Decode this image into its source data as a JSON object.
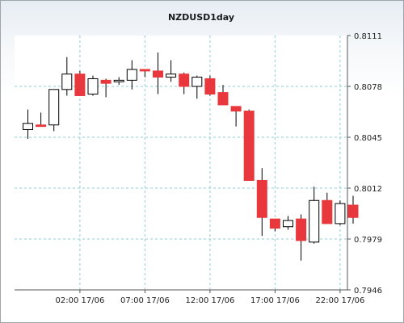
{
  "chart_data": {
    "type": "candlestick",
    "title": "NZDUSD1day",
    "xlabel": "",
    "ylabel": "",
    "ylim": [
      0.7946,
      0.8111
    ],
    "y_ticks": [
      "0.8111",
      "0.8078",
      "0.8045",
      "0.8012",
      "0.7979",
      "0.7946"
    ],
    "x_ticks": [
      {
        "index": 4,
        "label": "02:00 17/06"
      },
      {
        "index": 9,
        "label": "07:00 17/06"
      },
      {
        "index": 14,
        "label": "12:00 17/06"
      },
      {
        "index": 19,
        "label": "17:00 17/06"
      },
      {
        "index": 24,
        "label": "22:00 17/06"
      }
    ],
    "grid": true,
    "legend": "none",
    "colors": {
      "up": "#ffffff",
      "down": "#e8383d",
      "outline": "#000000",
      "grid": "#8ccfd6"
    },
    "candles": [
      {
        "open": 0.805,
        "high": 0.8063,
        "low": 0.8044,
        "close": 0.8054
      },
      {
        "open": 0.8053,
        "high": 0.8061,
        "low": 0.8052,
        "close": 0.8052
      },
      {
        "open": 0.8053,
        "high": 0.8076,
        "low": 0.8049,
        "close": 0.8076
      },
      {
        "open": 0.8076,
        "high": 0.8097,
        "low": 0.8072,
        "close": 0.8086
      },
      {
        "open": 0.8086,
        "high": 0.8088,
        "low": 0.8072,
        "close": 0.8072
      },
      {
        "open": 0.8073,
        "high": 0.8085,
        "low": 0.8072,
        "close": 0.8083
      },
      {
        "open": 0.8082,
        "high": 0.8083,
        "low": 0.8071,
        "close": 0.808
      },
      {
        "open": 0.8081,
        "high": 0.8084,
        "low": 0.8079,
        "close": 0.8082
      },
      {
        "open": 0.8082,
        "high": 0.8095,
        "low": 0.8076,
        "close": 0.8089
      },
      {
        "open": 0.8089,
        "high": 0.8089,
        "low": 0.8084,
        "close": 0.8088
      },
      {
        "open": 0.8088,
        "high": 0.81,
        "low": 0.8073,
        "close": 0.8084
      },
      {
        "open": 0.8084,
        "high": 0.8095,
        "low": 0.8081,
        "close": 0.8086
      },
      {
        "open": 0.8086,
        "high": 0.8087,
        "low": 0.8073,
        "close": 0.8078
      },
      {
        "open": 0.8078,
        "high": 0.8085,
        "low": 0.807,
        "close": 0.8084
      },
      {
        "open": 0.8083,
        "high": 0.8085,
        "low": 0.8072,
        "close": 0.8073
      },
      {
        "open": 0.8074,
        "high": 0.8079,
        "low": 0.8066,
        "close": 0.8066
      },
      {
        "open": 0.8065,
        "high": 0.8065,
        "low": 0.8052,
        "close": 0.8062
      },
      {
        "open": 0.8062,
        "high": 0.8063,
        "low": 0.8017,
        "close": 0.8017
      },
      {
        "open": 0.8017,
        "high": 0.8025,
        "low": 0.7981,
        "close": 0.7993
      },
      {
        "open": 0.7992,
        "high": 0.7992,
        "low": 0.7984,
        "close": 0.7986
      },
      {
        "open": 0.7987,
        "high": 0.7994,
        "low": 0.7985,
        "close": 0.7991
      },
      {
        "open": 0.7992,
        "high": 0.7995,
        "low": 0.7965,
        "close": 0.7978
      },
      {
        "open": 0.7977,
        "high": 0.8013,
        "low": 0.7976,
        "close": 0.8004
      },
      {
        "open": 0.8004,
        "high": 0.8009,
        "low": 0.7989,
        "close": 0.7989
      },
      {
        "open": 0.7989,
        "high": 0.8004,
        "low": 0.7988,
        "close": 0.8002
      },
      {
        "open": 0.8001,
        "high": 0.8007,
        "low": 0.7989,
        "close": 0.7993
      }
    ]
  }
}
